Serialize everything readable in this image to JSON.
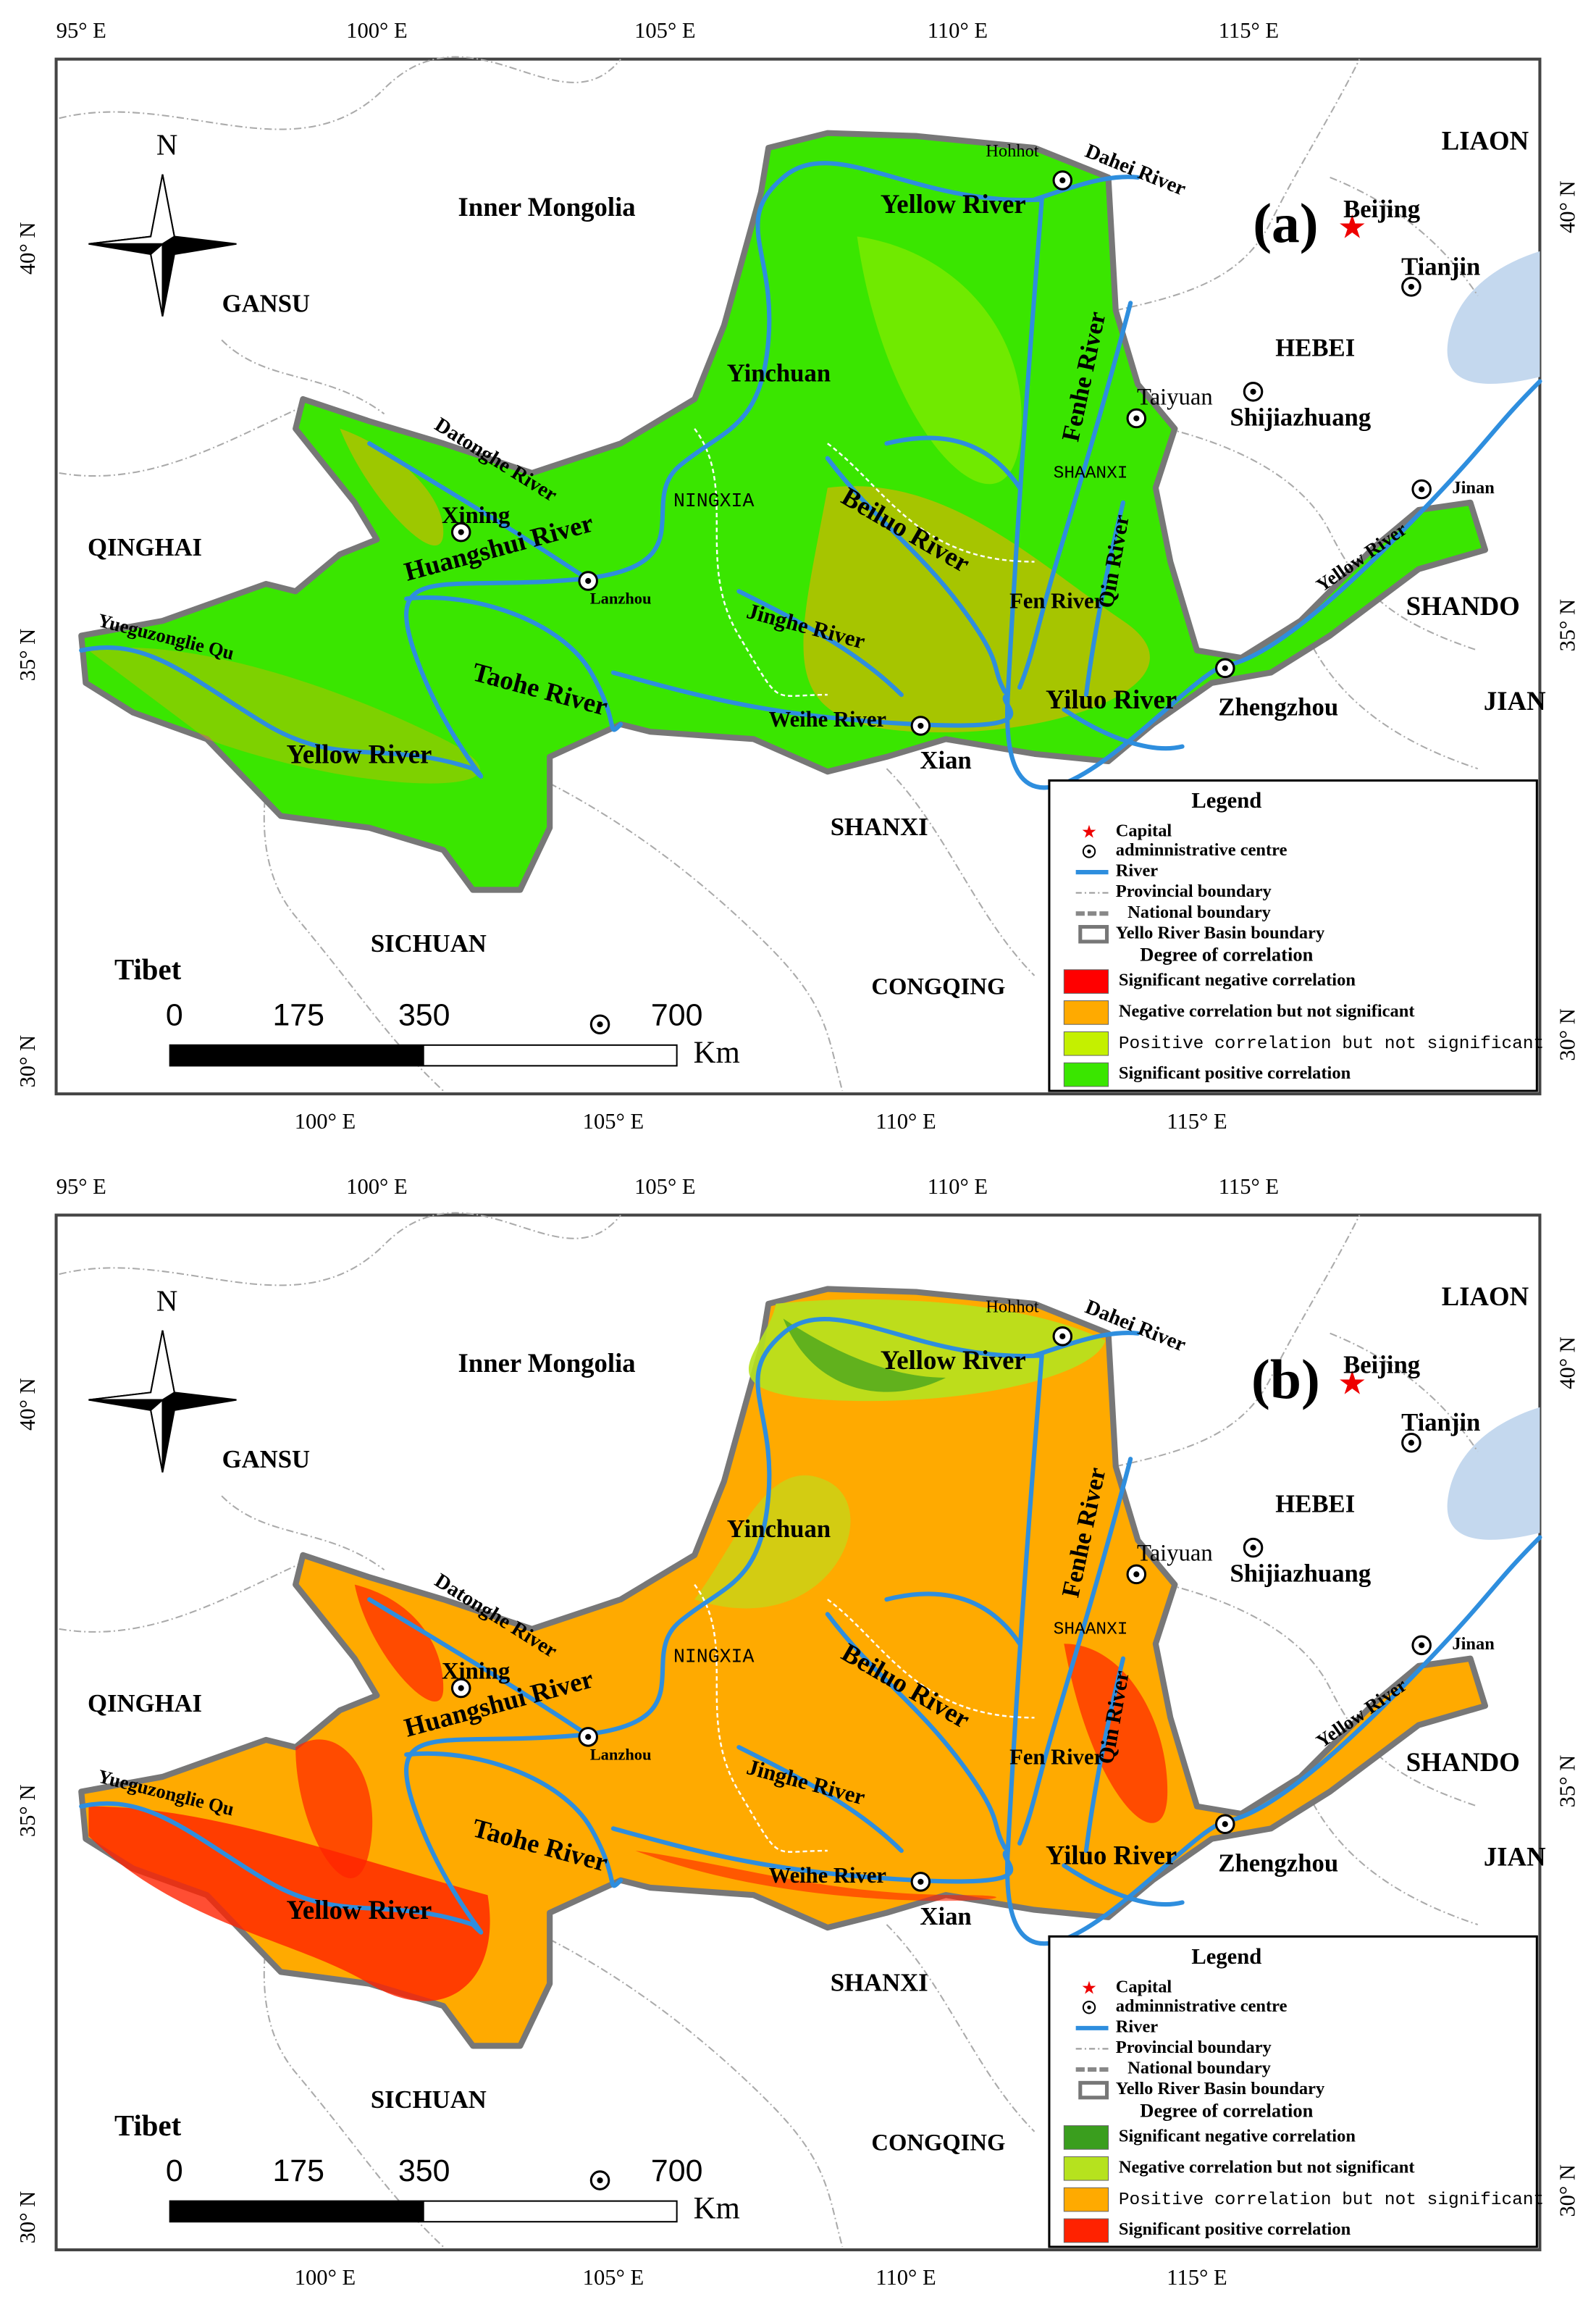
{
  "axes": {
    "top": [
      "95° E",
      "100° E",
      "105° E",
      "110° E",
      "115° E"
    ],
    "bottom": [
      "100° E",
      "105° E",
      "110° E",
      "115° E"
    ],
    "left": [
      "40° N",
      "35° N",
      "30° N"
    ],
    "right": [
      "40° N",
      "35° N",
      "30° N"
    ]
  },
  "compass": "N",
  "places": [
    "Inner Mongolia",
    "GANSU",
    "QINGHAI",
    "SICHUAN",
    "Tibet",
    "SHANXI",
    "CONGQING",
    "HEBEI",
    "LIAON",
    "SHANDO",
    "JIAN",
    "Beijing",
    "Tianjin",
    "Shijiazhuang",
    "Taiyuan",
    "Jinan",
    "Zhengzhou",
    "Xian",
    "Yinchuan",
    "Hohhot",
    "Lanzhou",
    "Xining",
    "NINGXIA",
    "SHAANXI"
  ],
  "rivers": [
    "Yellow River",
    "Dahei River",
    "Fenhe River",
    "Datonghe River",
    "Huangshui River",
    "Beiluo River",
    "Jinghe River",
    "Fen River",
    "Qin River",
    "Taohe River",
    "Weihe River",
    "Yiluo River",
    "Yellow River",
    "Yellow River",
    "Yueguzonglie Qu"
  ],
  "scale": {
    "ticks": [
      0,
      175,
      350,
      700
    ],
    "unit": "Km"
  },
  "legend": {
    "title": "Legend",
    "items": [
      "Capital",
      "adminnistrative centre",
      "River",
      "Provincial boundary",
      "National boundary",
      "Yello River Basin boundary"
    ],
    "subtitle": "Degree of correlation"
  },
  "panels": [
    {
      "tag": "(a)",
      "classes": [
        {
          "label": "Significant negative correlation",
          "color": "#ff0000"
        },
        {
          "label": "Negative correlation but not significant",
          "color": "#ffaa00"
        },
        {
          "label": "Positive correlation but not significant",
          "color": "#c4f000"
        },
        {
          "label": "Significant positive correlation",
          "color": "#3ae600"
        }
      ]
    },
    {
      "tag": "(b)",
      "classes": [
        {
          "label": "Significant negative correlation",
          "color": "#3a9e1e"
        },
        {
          "label": "Negative correlation but not significant",
          "color": "#b6e21e"
        },
        {
          "label": "Positive correlation but not significant",
          "color": "#ffaa00"
        },
        {
          "label": "Significant positive correlation",
          "color": "#ff2200"
        }
      ]
    }
  ]
}
